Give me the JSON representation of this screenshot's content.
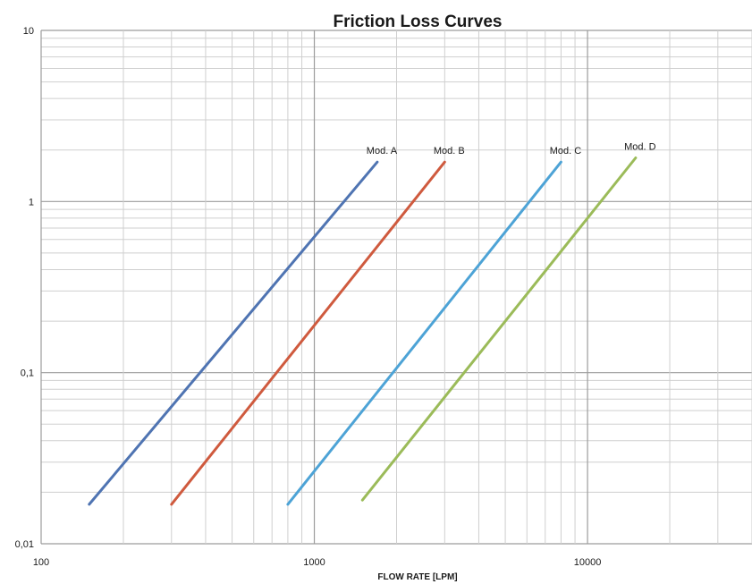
{
  "chart_data": {
    "type": "line",
    "title": "Friction Loss Curves",
    "xlabel": "FLOW RATE [LPM]",
    "ylabel": "",
    "xscale": "log",
    "yscale": "log",
    "xlim": [
      100,
      40000
    ],
    "ylim": [
      0.01,
      10
    ],
    "x_tick_labels": [
      "100",
      "1000",
      "10000"
    ],
    "y_tick_labels": [
      "10",
      "1",
      "0,1",
      "0,01"
    ],
    "grid": true,
    "series": [
      {
        "name": "Mod. A",
        "color": "#4f74b2",
        "x": [
          150,
          1700
        ],
        "y": [
          0.017,
          1.7
        ]
      },
      {
        "name": "Mod. B",
        "color": "#cf5a3e",
        "x": [
          300,
          3000
        ],
        "y": [
          0.017,
          1.7
        ]
      },
      {
        "name": "Mod. C",
        "color": "#4da3d6",
        "x": [
          800,
          8000
        ],
        "y": [
          0.017,
          1.7
        ]
      },
      {
        "name": "Mod. D",
        "color": "#9bbb59",
        "x": [
          1500,
          15000
        ],
        "y": [
          0.018,
          1.8
        ]
      }
    ]
  }
}
